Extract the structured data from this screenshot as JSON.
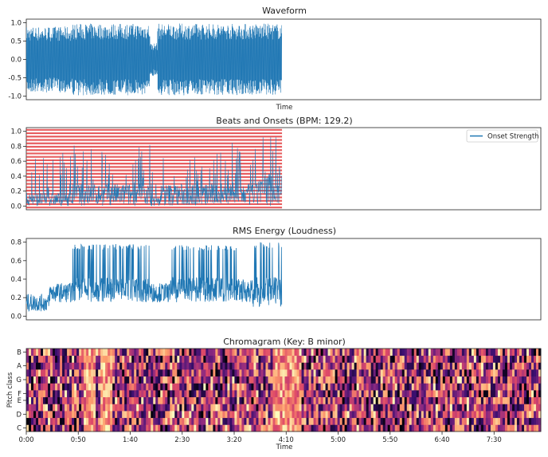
{
  "chart_data": [
    {
      "id": "waveform",
      "type": "line",
      "title": "Waveform",
      "xlabel": "Time",
      "ylabel": "",
      "ylim": [
        -1.1,
        1.1
      ],
      "yticks": [
        "1.0",
        "0.5",
        "0.0",
        "-0.5",
        "-1.0"
      ],
      "ytick_values": [
        1.0,
        0.5,
        0.0,
        -0.5,
        -1.0
      ],
      "data_end_fraction": 0.497,
      "segments": [
        {
          "from": 0.0,
          "to": 0.09,
          "amplitude": 0.9
        },
        {
          "from": 0.09,
          "to": 0.24,
          "amplitude": 0.98
        },
        {
          "from": 0.24,
          "to": 0.255,
          "amplitude": 0.45
        },
        {
          "from": 0.255,
          "to": 0.497,
          "amplitude": 0.98
        }
      ],
      "color": "#1f77b4"
    },
    {
      "id": "beats",
      "type": "line",
      "title": "Beats and Onsets (BPM: 129.2)",
      "xlabel": "",
      "ylabel": "",
      "ylim": [
        -0.05,
        1.05
      ],
      "yticks": [
        "1.0",
        "0.8",
        "0.6",
        "0.4",
        "0.2",
        "0.0"
      ],
      "ytick_values": [
        1.0,
        0.8,
        0.6,
        0.4,
        0.2,
        0.0
      ],
      "legend": {
        "label": "Onset Strength",
        "placement": "top-right"
      },
      "beat_line_color": "#e0282a",
      "beat_line_count": 24,
      "data_end_fraction": 0.497,
      "color": "#1f77b4"
    },
    {
      "id": "rms",
      "type": "line",
      "title": "RMS Energy (Loudness)",
      "xlabel": "",
      "ylabel": "",
      "ylim": [
        -0.04,
        0.84
      ],
      "yticks": [
        "0.8",
        "0.6",
        "0.4",
        "0.2",
        "0.0"
      ],
      "ytick_values": [
        0.8,
        0.6,
        0.4,
        0.2,
        0.0
      ],
      "data_end_fraction": 0.497,
      "segments": [
        {
          "from": 0.0,
          "to": 0.045,
          "low": 0.05,
          "high": 0.24
        },
        {
          "from": 0.045,
          "to": 0.09,
          "low": 0.15,
          "high": 0.36
        },
        {
          "from": 0.09,
          "to": 0.24,
          "low": 0.15,
          "high": 0.78
        },
        {
          "from": 0.24,
          "to": 0.28,
          "low": 0.15,
          "high": 0.36
        },
        {
          "from": 0.28,
          "to": 0.41,
          "low": 0.15,
          "high": 0.77
        },
        {
          "from": 0.41,
          "to": 0.44,
          "low": 0.15,
          "high": 0.4
        },
        {
          "from": 0.44,
          "to": 0.497,
          "low": 0.1,
          "high": 0.8
        }
      ],
      "color": "#1f77b4"
    },
    {
      "id": "chroma",
      "type": "heatmap",
      "title": "Chromagram (Key: B minor)",
      "xlabel": "Time",
      "ylabel": "Pitch class",
      "yticks": [
        "B",
        "A",
        "G",
        "F",
        "E",
        "D",
        "C"
      ],
      "ytick_rows": [
        11,
        9,
        7,
        5,
        4,
        2,
        0
      ],
      "rows": 12,
      "xticks": [
        "0:00",
        "0:50",
        "1:40",
        "2:30",
        "3:20",
        "4:10",
        "5:00",
        "5:50",
        "6:40",
        "7:30"
      ],
      "xtick_seconds": [
        0,
        50,
        100,
        150,
        200,
        250,
        300,
        350,
        400,
        450
      ],
      "duration_seconds": 495,
      "colormap": [
        "#000004",
        "#3b0f70",
        "#8c2981",
        "#de4968",
        "#fe9f6d",
        "#fcfdbf"
      ]
    }
  ]
}
